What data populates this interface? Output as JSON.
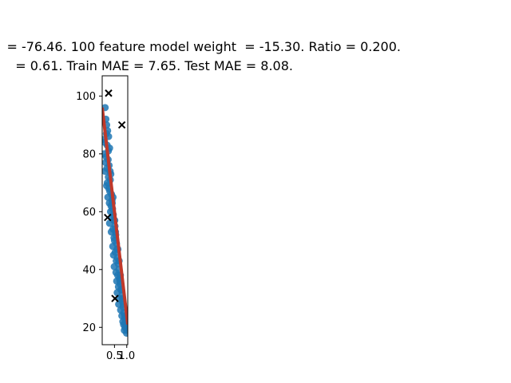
{
  "chart_data": {
    "type": "scatter",
    "title_lines": [
      "= -76.46. 100 feature model weight  = -15.30. Ratio = 0.200.",
      "= 0.61. Train MAE = 7.65. Test MAE = 8.08."
    ],
    "xlim": [
      0.0,
      1.04
    ],
    "ylim": [
      14,
      107
    ],
    "x_ticks": [
      {
        "value": 0.5,
        "label": "0.5"
      },
      {
        "value": 1.0,
        "label": "1.0"
      }
    ],
    "y_ticks": [
      {
        "value": 20,
        "label": "20"
      },
      {
        "value": 40,
        "label": "40"
      },
      {
        "value": 60,
        "label": "60"
      },
      {
        "value": 80,
        "label": "80"
      },
      {
        "value": 100,
        "label": "100"
      }
    ],
    "fit_line": {
      "x": [
        0.0,
        1.04
      ],
      "y": [
        96,
        21
      ],
      "color": "#c0392b"
    },
    "train_color": "#1f77b4",
    "test_color": "#000000",
    "train_points": {
      "x": [
        0.12,
        0.15,
        0.18,
        0.22,
        0.26,
        0.05,
        0.1,
        0.2,
        0.3,
        0.08,
        0.16,
        0.24,
        0.14,
        0.28,
        0.19,
        0.11,
        0.35,
        0.25,
        0.33,
        0.21,
        0.18,
        0.27,
        0.31,
        0.38,
        0.23,
        0.4,
        0.29,
        0.36,
        0.42,
        0.34,
        0.45,
        0.39,
        0.47,
        0.3,
        0.52,
        0.44,
        0.37,
        0.55,
        0.48,
        0.5,
        0.58,
        0.43,
        0.6,
        0.53,
        0.46,
        0.62,
        0.57,
        0.65,
        0.49,
        0.68,
        0.56,
        0.63,
        0.7,
        0.59,
        0.73,
        0.66,
        0.76,
        0.61,
        0.79,
        0.71,
        0.82,
        0.67,
        0.85,
        0.75,
        0.88,
        0.8,
        0.91,
        0.84,
        0.94,
        0.87,
        0.97,
        0.9,
        1.0,
        0.93,
        0.96,
        0.99,
        0.25,
        0.41,
        0.54,
        0.69,
        0.78,
        0.86,
        0.32,
        0.51,
        0.64,
        0.74,
        0.83,
        0.92,
        0.17,
        0.44,
        0.72,
        0.98
      ],
      "y": [
        96,
        92,
        90,
        88,
        86,
        85,
        84,
        83,
        82,
        80,
        79,
        78,
        77,
        76,
        75,
        74,
        73,
        72,
        71,
        70,
        69,
        68,
        67,
        66,
        65,
        64,
        63,
        62,
        61,
        60,
        59,
        58,
        57,
        56,
        55,
        54,
        53,
        52,
        51,
        50,
        49,
        48,
        47,
        46,
        45,
        44,
        43,
        42,
        41,
        40,
        39,
        38,
        37,
        36,
        35,
        34,
        33,
        32,
        31,
        30,
        29,
        28,
        27,
        26,
        25,
        24,
        23,
        22,
        21,
        21,
        20,
        19,
        19,
        20,
        22,
        18,
        81,
        63,
        53,
        43,
        33,
        28,
        74,
        57,
        47,
        38,
        30,
        24,
        87,
        65,
        36,
        23
      ]
    },
    "test_points": {
      "x": [
        0.26,
        0.8,
        0.22,
        0.52
      ],
      "y": [
        101,
        90,
        58,
        30
      ]
    }
  }
}
